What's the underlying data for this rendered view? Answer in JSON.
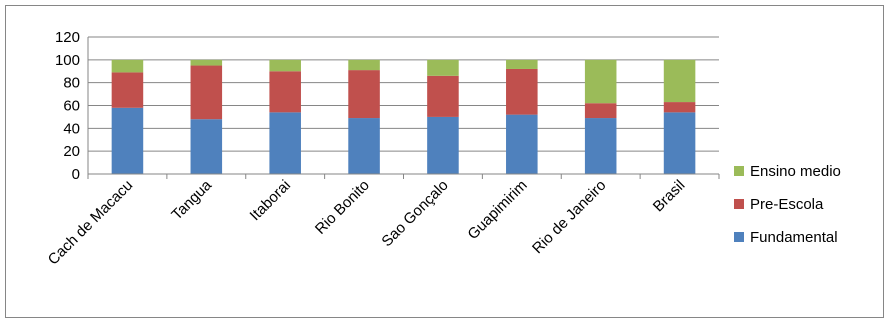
{
  "chart_data": {
    "type": "bar",
    "stacked": true,
    "title": "",
    "xlabel": "",
    "ylabel": "",
    "ylim": [
      0,
      120
    ],
    "yticks": [
      "0",
      "20",
      "40",
      "60",
      "80",
      "100",
      "120"
    ],
    "grid": true,
    "legend_position": "right",
    "categories": [
      "Cach de Macacu",
      "Tangua",
      "Itaborai",
      "Rio Bonito",
      "Sao Gonçalo",
      "Guapimirim",
      "Rio de Janeiro",
      "Brasil"
    ],
    "series": [
      {
        "name": "Fundamental",
        "color": "#4F81BD",
        "values": [
          58,
          48,
          54,
          49,
          50,
          52,
          49,
          54
        ]
      },
      {
        "name": "Pre-Escola",
        "color": "#C0504D",
        "values": [
          31,
          47,
          36,
          42,
          36,
          40,
          13,
          9
        ]
      },
      {
        "name": "Ensino medio",
        "color": "#9BBB59",
        "values": [
          11,
          5,
          10,
          9,
          14,
          8,
          38,
          37
        ]
      }
    ]
  }
}
